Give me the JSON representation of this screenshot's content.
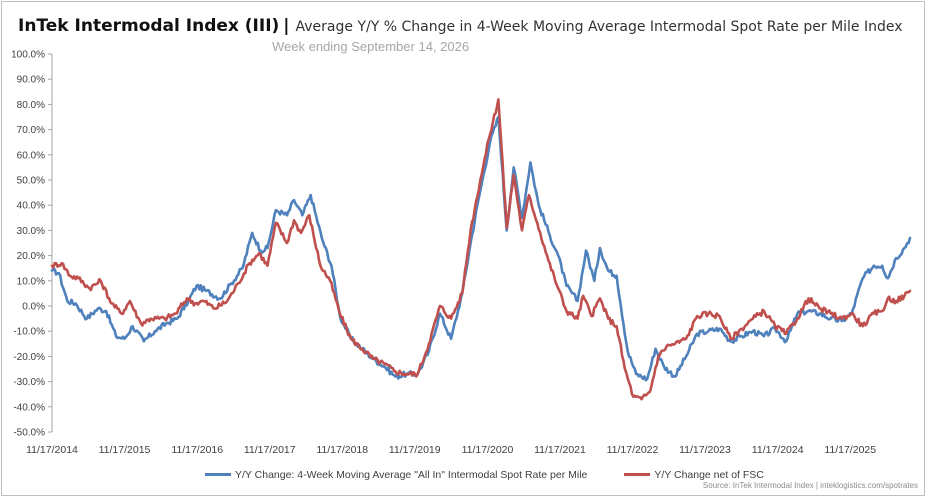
{
  "header": {
    "brand": "InTek Intermodal Index (III)",
    "separator": "|",
    "title": "Average Y/Y % Change in 4-Week Moving Average Intermodal Spot Rate per Mile Index",
    "subtitle": "Week ending September 14, 2026"
  },
  "source": "Source: InTek Intermodal Index | inteklogistics.com/spotrates",
  "chart_data": {
    "type": "line",
    "title": "Average Y/Y % Change in 4-Week Moving Average Intermodal Spot Rate per Mile Index",
    "xlabel": "",
    "ylabel": "",
    "x_range": [
      "11/17/2014",
      "09/14/2026"
    ],
    "ylim": [
      -50,
      100
    ],
    "y_ticks": [
      "100.0%",
      "90.0%",
      "80.0%",
      "70.0%",
      "60.0%",
      "50.0%",
      "40.0%",
      "30.0%",
      "20.0%",
      "10.0%",
      "0.0%",
      "-10.0%",
      "-20.0%",
      "-30.0%",
      "-40.0%",
      "-50.0%"
    ],
    "x_ticks": [
      "11/17/2014",
      "11/17/2015",
      "11/17/2016",
      "11/17/2017",
      "11/17/2018",
      "11/17/2019",
      "11/17/2020",
      "11/17/2021",
      "11/17/2022",
      "11/17/2023",
      "11/17/2024",
      "11/17/2025"
    ],
    "grid": false,
    "legend_position": "bottom",
    "series": [
      {
        "name": "Y/Y Change: 4-Week Moving Average \"All In\" Intermodal Spot Rate per Mile",
        "color": "#4f81bd",
        "points": [
          [
            "11/17/2014",
            14
          ],
          [
            "12/22/2014",
            13
          ],
          [
            "02/02/2015",
            2
          ],
          [
            "03/16/2015",
            1
          ],
          [
            "05/11/2015",
            -5
          ],
          [
            "07/06/2015",
            -1
          ],
          [
            "08/17/2015",
            -2
          ],
          [
            "10/05/2015",
            -12
          ],
          [
            "11/17/2015",
            -13
          ],
          [
            "12/28/2015",
            -8
          ],
          [
            "02/22/2016",
            -14
          ],
          [
            "04/18/2016",
            -10
          ],
          [
            "06/13/2016",
            -7
          ],
          [
            "08/08/2016",
            -5
          ],
          [
            "10/03/2016",
            2
          ],
          [
            "11/14/2016",
            8
          ],
          [
            "01/02/2017",
            6
          ],
          [
            "03/13/2017",
            3
          ],
          [
            "05/08/2017",
            9
          ],
          [
            "07/03/2017",
            15
          ],
          [
            "08/21/2017",
            29
          ],
          [
            "10/02/2017",
            22
          ],
          [
            "11/06/2017",
            23
          ],
          [
            "12/18/2017",
            38
          ],
          [
            "02/12/2018",
            36
          ],
          [
            "03/19/2018",
            42
          ],
          [
            "04/30/2018",
            36
          ],
          [
            "06/11/2018",
            44
          ],
          [
            "08/06/2018",
            27
          ],
          [
            "09/24/2018",
            16
          ],
          [
            "11/05/2018",
            -4
          ],
          [
            "12/31/2018",
            -13
          ],
          [
            "02/25/2019",
            -17
          ],
          [
            "04/22/2019",
            -21
          ],
          [
            "06/17/2019",
            -24
          ],
          [
            "08/12/2019",
            -28
          ],
          [
            "10/07/2019",
            -27
          ],
          [
            "12/02/2019",
            -27
          ],
          [
            "01/27/2020",
            -18
          ],
          [
            "03/23/2020",
            -3
          ],
          [
            "05/18/2020",
            -13
          ],
          [
            "07/13/2020",
            5
          ],
          [
            "08/24/2020",
            25
          ],
          [
            "10/05/2020",
            43
          ],
          [
            "11/30/2020",
            65
          ],
          [
            "01/11/2021",
            75
          ],
          [
            "02/22/2021",
            30
          ],
          [
            "03/29/2021",
            55
          ],
          [
            "05/10/2021",
            35
          ],
          [
            "06/21/2021",
            57
          ],
          [
            "08/02/2021",
            40
          ],
          [
            "09/27/2021",
            28
          ],
          [
            "11/08/2021",
            20
          ],
          [
            "12/20/2021",
            8
          ],
          [
            "02/14/2022",
            2
          ],
          [
            "03/28/2022",
            22
          ],
          [
            "05/09/2022",
            10
          ],
          [
            "06/06/2022",
            23
          ],
          [
            "07/18/2022",
            14
          ],
          [
            "08/29/2022",
            12
          ],
          [
            "10/24/2022",
            -18
          ],
          [
            "12/05/2022",
            -27
          ],
          [
            "01/30/2023",
            -29
          ],
          [
            "03/13/2023",
            -17
          ],
          [
            "04/24/2023",
            -24
          ],
          [
            "06/19/2023",
            -28
          ],
          [
            "08/14/2023",
            -20
          ],
          [
            "10/09/2023",
            -11
          ],
          [
            "12/04/2023",
            -10
          ],
          [
            "01/29/2024",
            -9
          ],
          [
            "03/25/2024",
            -14
          ],
          [
            "05/20/2024",
            -12
          ],
          [
            "07/15/2024",
            -10
          ],
          [
            "09/09/2024",
            -12
          ],
          [
            "11/04/2024",
            -9
          ],
          [
            "12/30/2024",
            -14
          ],
          [
            "02/24/2025",
            -3
          ],
          [
            "04/21/2025",
            -2
          ],
          [
            "06/16/2025",
            -3
          ],
          [
            "08/11/2025",
            -5
          ],
          [
            "10/06/2025",
            -6
          ],
          [
            "11/24/2025",
            -3
          ],
          [
            "01/19/2026",
            11
          ],
          [
            "03/16/2026",
            16
          ],
          [
            "04/27/2026",
            16
          ],
          [
            "05/25/2026",
            11
          ],
          [
            "07/06/2026",
            19
          ],
          [
            "08/17/2026",
            23
          ],
          [
            "09/14/2026",
            27
          ]
        ]
      },
      {
        "name": "Y/Y Change net of FSC",
        "color": "#c0504d",
        "points": [
          [
            "11/17/2014",
            16
          ],
          [
            "01/05/2015",
            17
          ],
          [
            "02/16/2015",
            12
          ],
          [
            "03/30/2015",
            11
          ],
          [
            "05/25/2015",
            7
          ],
          [
            "07/20/2015",
            10
          ],
          [
            "09/14/2015",
            1
          ],
          [
            "11/02/2015",
            -3
          ],
          [
            "12/14/2015",
            2
          ],
          [
            "02/08/2016",
            -7
          ],
          [
            "03/28/2016",
            -5
          ],
          [
            "06/06/2016",
            -5
          ],
          [
            "08/01/2016",
            -3
          ],
          [
            "09/26/2016",
            3
          ],
          [
            "11/07/2016",
            1
          ],
          [
            "12/19/2016",
            2
          ],
          [
            "02/13/2017",
            -1
          ],
          [
            "04/17/2017",
            2
          ],
          [
            "06/12/2017",
            9
          ],
          [
            "08/07/2017",
            17
          ],
          [
            "09/25/2017",
            21
          ],
          [
            "11/06/2017",
            16
          ],
          [
            "12/18/2017",
            33
          ],
          [
            "02/12/2018",
            25
          ],
          [
            "03/19/2018",
            34
          ],
          [
            "04/23/2018",
            29
          ],
          [
            "06/04/2018",
            36
          ],
          [
            "07/30/2018",
            16
          ],
          [
            "09/17/2018",
            10
          ],
          [
            "11/05/2018",
            -3
          ],
          [
            "12/31/2018",
            -13
          ],
          [
            "02/25/2019",
            -17
          ],
          [
            "04/22/2019",
            -21
          ],
          [
            "06/17/2019",
            -23
          ],
          [
            "08/12/2019",
            -26
          ],
          [
            "10/07/2019",
            -27
          ],
          [
            "12/02/2019",
            -27
          ],
          [
            "01/27/2020",
            -15
          ],
          [
            "03/23/2020",
            0
          ],
          [
            "05/18/2020",
            -5
          ],
          [
            "07/13/2020",
            5
          ],
          [
            "08/24/2020",
            30
          ],
          [
            "10/12/2020",
            50
          ],
          [
            "11/23/2020",
            66
          ],
          [
            "01/11/2021",
            82
          ],
          [
            "02/22/2021",
            31
          ],
          [
            "03/29/2021",
            52
          ],
          [
            "05/10/2021",
            30
          ],
          [
            "06/14/2021",
            44
          ],
          [
            "07/26/2021",
            33
          ],
          [
            "09/20/2021",
            18
          ],
          [
            "11/08/2021",
            7
          ],
          [
            "12/20/2021",
            -2
          ],
          [
            "02/14/2022",
            -5
          ],
          [
            "03/14/2022",
            4
          ],
          [
            "04/25/2022",
            -4
          ],
          [
            "06/06/2022",
            3
          ],
          [
            "07/18/2022",
            -5
          ],
          [
            "08/29/2022",
            -8
          ],
          [
            "10/10/2022",
            -25
          ],
          [
            "11/21/2022",
            -36
          ],
          [
            "01/02/2023",
            -37
          ],
          [
            "02/13/2023",
            -34
          ],
          [
            "03/27/2023",
            -20
          ],
          [
            "05/08/2023",
            -16
          ],
          [
            "06/19/2023",
            -15
          ],
          [
            "08/14/2023",
            -13
          ],
          [
            "10/09/2023",
            -4
          ],
          [
            "12/04/2023",
            -3
          ],
          [
            "01/29/2024",
            -4
          ],
          [
            "03/25/2024",
            -13
          ],
          [
            "05/20/2024",
            -9
          ],
          [
            "07/15/2024",
            -5
          ],
          [
            "09/09/2024",
            -2
          ],
          [
            "11/04/2024",
            -8
          ],
          [
            "12/30/2024",
            -11
          ],
          [
            "02/24/2025",
            -5
          ],
          [
            "04/21/2025",
            3
          ],
          [
            "06/16/2025",
            -1
          ],
          [
            "08/11/2025",
            -3
          ],
          [
            "10/06/2025",
            -5
          ],
          [
            "11/24/2025",
            -3
          ],
          [
            "01/19/2026",
            -8
          ],
          [
            "03/16/2026",
            -3
          ],
          [
            "04/27/2026",
            -2
          ],
          [
            "05/25/2026",
            3
          ],
          [
            "07/06/2026",
            2
          ],
          [
            "08/17/2026",
            4
          ],
          [
            "09/14/2026",
            6
          ]
        ]
      }
    ]
  }
}
